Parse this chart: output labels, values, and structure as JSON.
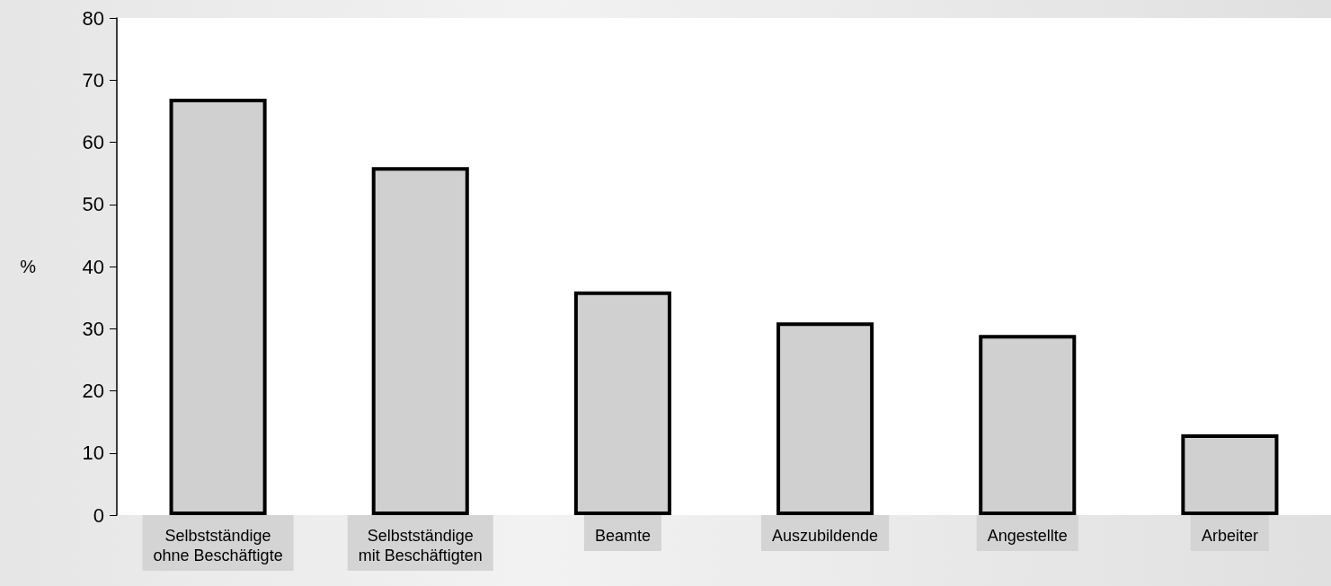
{
  "chart_data": {
    "type": "bar",
    "ylabel": "%",
    "categories": [
      "Selbstständige\nohne Beschäftigte",
      "Selbstständige\nmit Beschäftigten",
      "Beamte",
      "Auszubildende",
      "Angestellte",
      "Arbeiter"
    ],
    "values": [
      67,
      56,
      36,
      31,
      29,
      13
    ],
    "color": "#d0d0d0",
    "ylim": [
      0,
      80
    ],
    "yticks": [
      0,
      10,
      20,
      30,
      40,
      50,
      60,
      70,
      80
    ],
    "grid": false
  }
}
